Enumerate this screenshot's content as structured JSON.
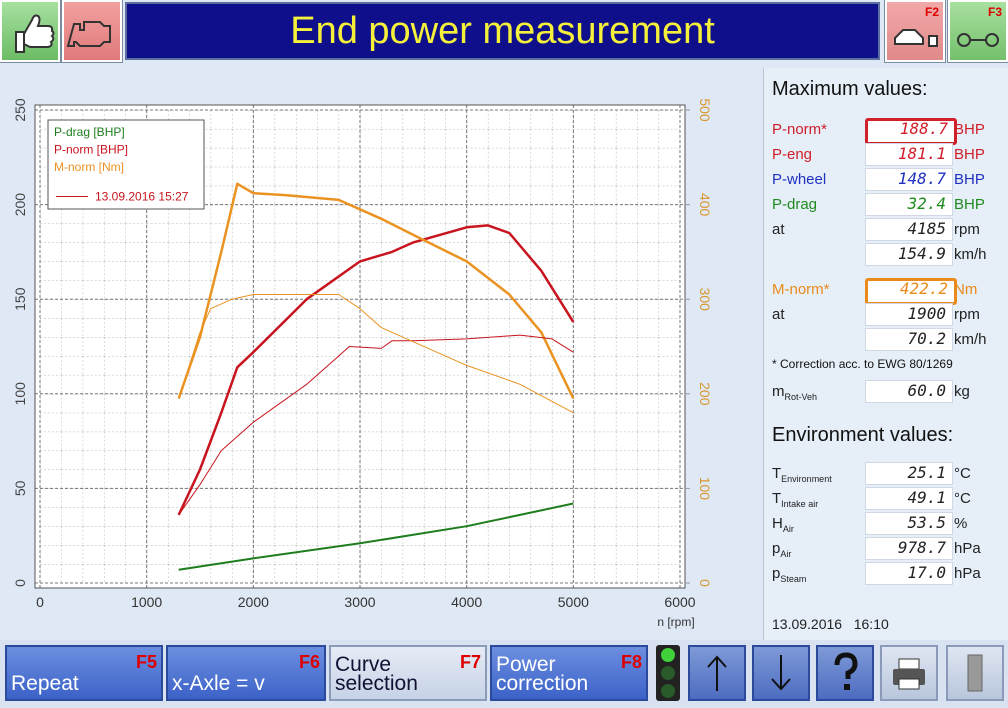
{
  "header": {
    "title": "End power measurement",
    "f2": "F2",
    "f3": "F3"
  },
  "chart_data": {
    "type": "line",
    "xlabel": "n [rpm]",
    "xlim": [
      0,
      6000
    ],
    "xticks": [
      0,
      1000,
      2000,
      3000,
      4000,
      5000,
      6000
    ],
    "ylim": [
      0,
      250
    ],
    "yticks": [
      0,
      50,
      100,
      150,
      200,
      250
    ],
    "y2lim": [
      0,
      500
    ],
    "y2ticks": [
      0,
      100,
      200,
      300,
      400,
      500
    ],
    "grid": true,
    "legend_note": "13.09.2016 15:27",
    "series": [
      {
        "name": "P-drag [BHP]",
        "color": "#1e7d1e",
        "width": 2,
        "x": [
          1300,
          2000,
          3000,
          4000,
          4500,
          5000
        ],
        "values": [
          7,
          13,
          21,
          30,
          36,
          42
        ]
      },
      {
        "name": "P-norm [BHP]",
        "color": "#c8141e",
        "width": 2.5,
        "x": [
          1300,
          1500,
          1700,
          1850,
          2000,
          2500,
          3000,
          3300,
          3500,
          4000,
          4200,
          4400,
          4700,
          5000
        ],
        "values": [
          36,
          60,
          90,
          114,
          122,
          150,
          170,
          175,
          180,
          188,
          189,
          185,
          165,
          138
        ]
      },
      {
        "name": "M-norm [Nm]",
        "color": "#ea9322",
        "width": 2.5,
        "axis": "y2",
        "x": [
          1300,
          1500,
          1700,
          1850,
          2000,
          2300,
          2800,
          3200,
          3500,
          4000,
          4400,
          4700,
          5000
        ],
        "values": [
          195,
          260,
          350,
          422,
          412,
          410,
          405,
          385,
          368,
          340,
          305,
          265,
          195
        ]
      },
      {
        "color": "#c8141e",
        "width": 1,
        "x": [
          1300,
          1500,
          1700,
          2000,
          2500,
          2800,
          2900,
          3200,
          3300,
          3500,
          4000,
          4500,
          4800,
          5000
        ],
        "values": [
          36,
          52,
          70,
          85,
          105,
          120,
          125,
          124,
          128,
          128,
          129,
          131,
          129,
          122
        ]
      },
      {
        "color": "#ea9322",
        "width": 1,
        "axis": "y2",
        "x": [
          1300,
          1500,
          1600,
          1800,
          2000,
          2800,
          3000,
          3200,
          3500,
          4000,
          4500,
          5000
        ],
        "values": [
          195,
          265,
          290,
          300,
          305,
          305,
          290,
          270,
          255,
          230,
          210,
          180
        ]
      }
    ]
  },
  "max_values": {
    "title": "Maximum values:",
    "rows": [
      {
        "label": "P-norm*",
        "value": "188.7",
        "unit": "BHP",
        "color": "#d0202a",
        "highlight": "#d0202a"
      },
      {
        "label": "P-eng",
        "value": "181.1",
        "unit": "BHP",
        "color": "#d0202a"
      },
      {
        "label": "P-wheel",
        "value": "148.7",
        "unit": "BHP",
        "color": "#2030c0"
      },
      {
        "label": "P-drag",
        "value": "32.4",
        "unit": "BHP",
        "color": "#1e8a1e"
      },
      {
        "label": "at",
        "value": "4185",
        "unit": "rpm",
        "color": "#222"
      },
      {
        "value": "154.9",
        "unit": "km/h",
        "color": "#222"
      },
      {
        "label": "M-norm*",
        "value": "422.2",
        "unit": "Nm",
        "color": "#ea8a1a",
        "highlight": "#ea8a1a"
      },
      {
        "label": "at",
        "value": "1900",
        "unit": "rpm",
        "color": "#222"
      },
      {
        "value": "70.2",
        "unit": "km/h",
        "color": "#222"
      }
    ],
    "note": "* Correction acc. to EWG 80/1269",
    "mass": {
      "label": "m",
      "sub": "Rot-Veh",
      "value": "60.0",
      "unit": "kg"
    }
  },
  "environment": {
    "title": "Environment values:",
    "rows": [
      {
        "label": "T",
        "sub": "Environment",
        "value": "25.1",
        "unit": "°C"
      },
      {
        "label": "T",
        "sub": "Intake air",
        "value": "49.1",
        "unit": "°C"
      },
      {
        "label": "H",
        "sub": "Air",
        "value": "53.5",
        "unit": "%"
      },
      {
        "label": "p",
        "sub": "Air",
        "value": "978.7",
        "unit": "hPa"
      },
      {
        "label": "p",
        "sub": "Steam",
        "value": "17.0",
        "unit": "hPa"
      }
    ]
  },
  "timestamp": "13.09.2016   16:10",
  "buttons": [
    {
      "label": "Repeat",
      "key": "F5"
    },
    {
      "label": "x-Axle = v",
      "key": "F6"
    },
    {
      "label": "Curve selection",
      "key": "F7"
    },
    {
      "label": "Power correction",
      "key": "F8"
    }
  ]
}
